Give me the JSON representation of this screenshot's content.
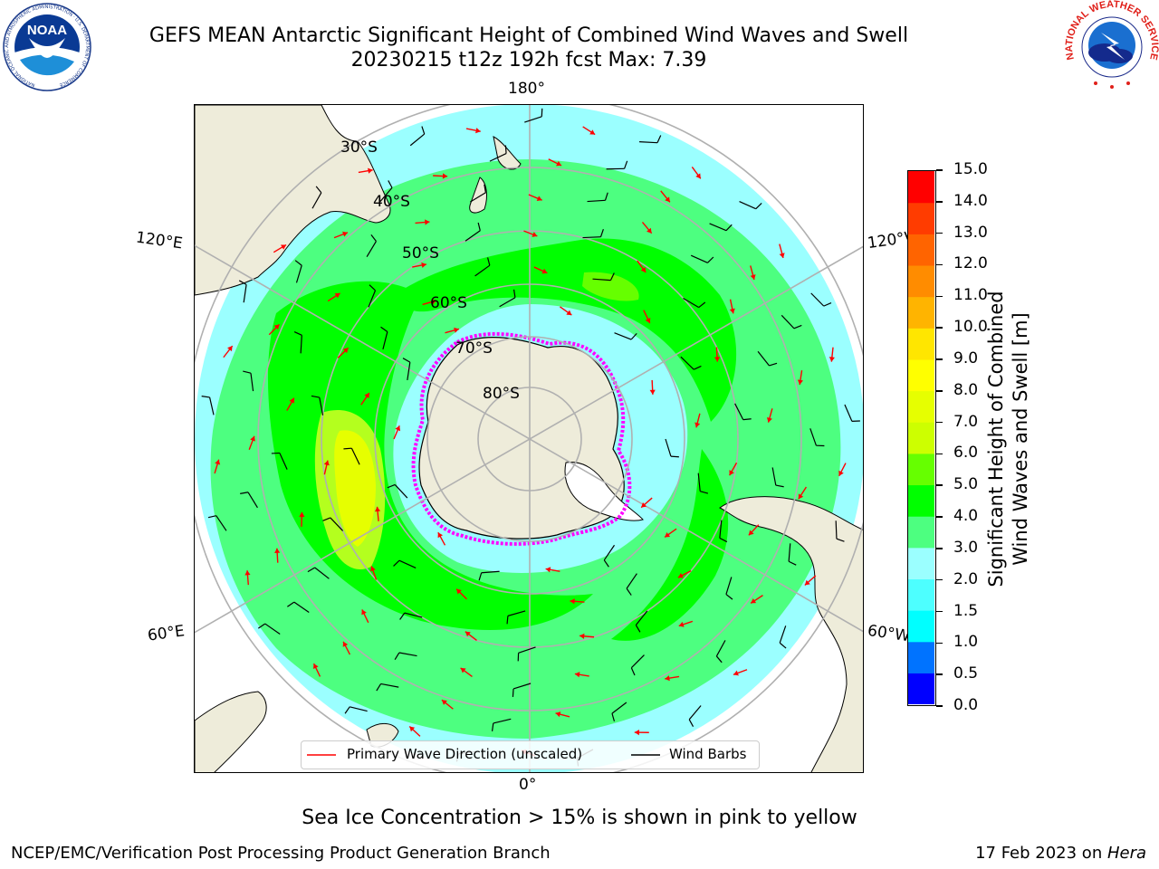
{
  "header": {
    "title_line1": "GEFS MEAN Antarctic Significant Height of Combined Wind Waves and Swell",
    "title_line2": "20230215 t12z 192h fcst   Max: 7.39",
    "left_logo_text": "NOAA",
    "left_logo_ring_text": "NATIONAL OCEANIC AND ATMOSPHERIC ADMINISTRATION · U.S. DEPARTMENT OF COMMERCE",
    "right_logo_ring_text": "NATIONAL WEATHER SERVICE"
  },
  "map": {
    "projection": "south-polar-stereographic",
    "lon_labels": {
      "top": "180°",
      "bottom": "0°",
      "upper_left": "120°E",
      "lower_left": "60°E",
      "upper_right": "120°W",
      "lower_right": "60°W"
    },
    "lat_labels": [
      "30°S",
      "40°S",
      "50°S",
      "60°S",
      "70°S",
      "80°S"
    ],
    "colors": {
      "land": "#eeecda",
      "coast": "#000000",
      "grid": "#b0b0b0",
      "wave_arrow": "#ff0000",
      "wind_barb": "#000000",
      "sea_ice": "#ff00ff"
    }
  },
  "legend": {
    "wave_label": "Primary Wave Direction (unscaled)",
    "barb_label": "Wind Barbs"
  },
  "colorbar": {
    "ticks": [
      "0.0",
      "0.5",
      "1.0",
      "1.5",
      "2.0",
      "3.0",
      "4.0",
      "5.0",
      "6.0",
      "7.0",
      "8.0",
      "9.0",
      "10.0",
      "11.0",
      "12.0",
      "13.0",
      "14.0",
      "15.0"
    ],
    "colors": [
      "#0000ff",
      "#0073ff",
      "#00ffff",
      "#4dffff",
      "#9bffff",
      "#4dff80",
      "#00ff00",
      "#66ff00",
      "#cdff00",
      "#e6ff00",
      "#ffff00",
      "#ffe600",
      "#ffb400",
      "#ff8c00",
      "#ff6400",
      "#ff3c00",
      "#ff0000"
    ],
    "title_line1": "Significant Height of Combined",
    "title_line2": "Wind Waves and Swell [m]"
  },
  "chart_data": {
    "type": "heatmap",
    "title": "GEFS MEAN Antarctic Significant Height of Combined Wind Waves and Swell",
    "subtitle": "20230215 t12z 192h fcst   Max: 7.39",
    "variable": "Significant Height of Combined Wind Waves and Swell [m]",
    "max_value": 7.39,
    "colorbar_range": [
      0.0,
      15.0
    ],
    "colorbar_levels": [
      0.0,
      0.5,
      1.0,
      1.5,
      2.0,
      3.0,
      4.0,
      5.0,
      6.0,
      7.0,
      8.0,
      9.0,
      10.0,
      11.0,
      12.0,
      13.0,
      14.0,
      15.0
    ],
    "legend": [
      "Primary Wave Direction (unscaled)",
      "Wind Barbs"
    ],
    "note": "Sea Ice Concentration > 15% is shown in pink to yellow"
  },
  "footer": {
    "note": "Sea Ice Concentration > 15% is shown in pink to yellow",
    "credit": "NCEP/EMC/Verification Post Processing Product Generation Branch",
    "date_prefix": "17 Feb 2023 on ",
    "date_machine": "Hera"
  }
}
